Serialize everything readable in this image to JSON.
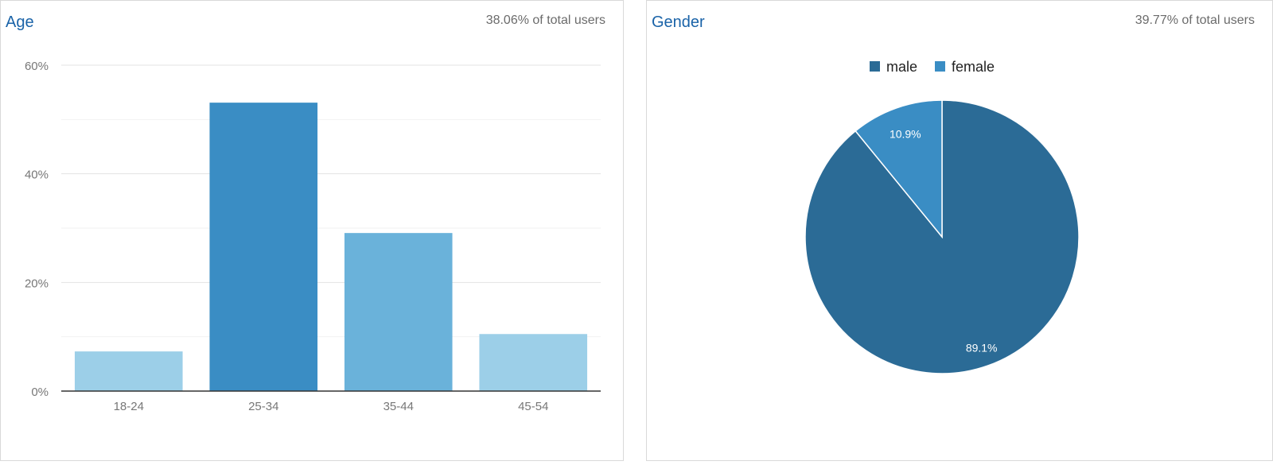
{
  "age_panel": {
    "title": "Age",
    "subtitle": "38.06% of total users"
  },
  "gender_panel": {
    "title": "Gender",
    "subtitle": "39.77% of total users"
  },
  "chart_data": [
    {
      "type": "bar",
      "title": "Age",
      "categories": [
        "18-24",
        "25-34",
        "35-44",
        "45-54"
      ],
      "values": [
        7.3,
        53.1,
        29.1,
        10.5
      ],
      "ylim": [
        0,
        60
      ],
      "yticks": [
        0,
        20,
        40,
        60
      ],
      "ytick_labels": [
        "0%",
        "20%",
        "40%",
        "60%"
      ],
      "grid": true,
      "colors": [
        "#9ccfe8",
        "#3a8dc4",
        "#6ab2da",
        "#9ccfe8"
      ]
    },
    {
      "type": "pie",
      "title": "Gender",
      "labels": [
        "male",
        "female"
      ],
      "values": [
        89.1,
        10.9
      ],
      "value_labels": [
        "89.1%",
        "10.9%"
      ],
      "colors": [
        "#2b6b96",
        "#3a8dc4"
      ],
      "legend": "top"
    }
  ]
}
